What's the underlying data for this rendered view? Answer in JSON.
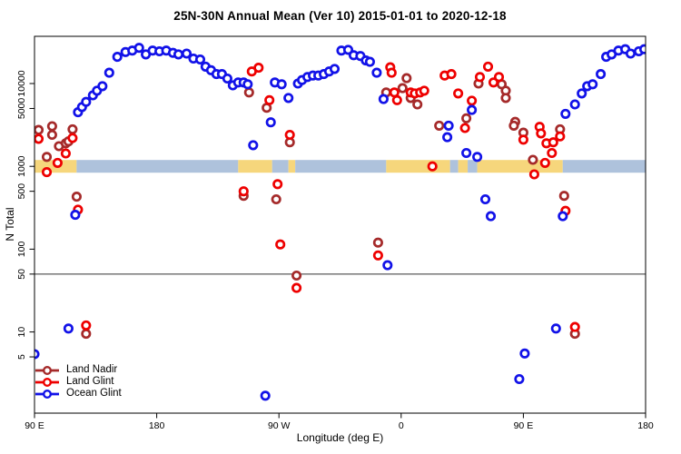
{
  "title": "25N-30N Annual Mean (Ver 10)   2015-01-01 to 2020-12-18",
  "chart_data": {
    "type": "scatter",
    "title": "25N-30N Annual Mean (Ver 10)   2015-01-01 to 2020-12-18",
    "xlabel": "Longitude (deg E)",
    "ylabel": "N Total",
    "x_axis": {
      "range_deg_continuous": [
        90,
        540
      ],
      "note": "longitude axis wraps eastward: 90E to 180 to 90W to 0 to 90E to 180",
      "ticks": [
        {
          "pos": 90,
          "label": "90 E"
        },
        {
          "pos": 180,
          "label": "180"
        },
        {
          "pos": 270,
          "label": "90 W"
        },
        {
          "pos": 360,
          "label": "0"
        },
        {
          "pos": 450,
          "label": "90 E"
        },
        {
          "pos": 540,
          "label": "180"
        }
      ]
    },
    "y_axis": {
      "scale": "log10",
      "range": [
        1,
        37000
      ],
      "ticks": [
        10000,
        5000,
        1000,
        500,
        100,
        50,
        10,
        5
      ]
    },
    "reference_line_value": 50,
    "grid": "off",
    "legend_position": "bottom-left-inside",
    "map_band": {
      "description": "land/ocean strip of the 25N-30N latitude band drawn at N=1000",
      "center_value": 1000,
      "land_color": "#F6D67C",
      "ocean_color": "#AEC2DC",
      "segments": [
        {
          "type": "land",
          "from": 90,
          "to": 121
        },
        {
          "type": "ocean",
          "from": 121,
          "to": 240
        },
        {
          "type": "land",
          "from": 240,
          "to": 265
        },
        {
          "type": "ocean",
          "from": 265,
          "to": 277
        },
        {
          "type": "land",
          "from": 277,
          "to": 282
        },
        {
          "type": "ocean",
          "from": 282,
          "to": 349
        },
        {
          "type": "land",
          "from": 349,
          "to": 396
        },
        {
          "type": "ocean",
          "from": 396,
          "to": 402
        },
        {
          "type": "land",
          "from": 402,
          "to": 409
        },
        {
          "type": "ocean",
          "from": 409,
          "to": 416
        },
        {
          "type": "land",
          "from": 416,
          "to": 479
        },
        {
          "type": "ocean",
          "from": 479,
          "to": 540
        }
      ]
    },
    "series": [
      {
        "id": "land-nadir",
        "label": "Land Nadir",
        "color": "#A52A2A",
        "points": [
          [
            93,
            2750
          ],
          [
            103,
            3050
          ],
          [
            103,
            2400
          ],
          [
            118,
            2800
          ],
          [
            108,
            1750
          ],
          [
            113,
            1900
          ],
          [
            115,
            2000
          ],
          [
            99,
            1300
          ],
          [
            121,
            430
          ],
          [
            248,
            7800
          ],
          [
            261,
            5100
          ],
          [
            278,
            1950
          ],
          [
            268,
            400
          ],
          [
            244,
            440
          ],
          [
            283,
            48
          ],
          [
            364,
            11600
          ],
          [
            349,
            7800
          ],
          [
            361,
            8800
          ],
          [
            367,
            6700
          ],
          [
            372,
            5600
          ],
          [
            388,
            3100
          ],
          [
            343,
            120
          ],
          [
            408,
            3800
          ],
          [
            417,
            10000
          ],
          [
            434,
            9800
          ],
          [
            437,
            8200
          ],
          [
            437,
            6700
          ],
          [
            444,
            3450
          ],
          [
            443,
            3100
          ],
          [
            450,
            2550
          ],
          [
            457,
            1200
          ],
          [
            477,
            2800
          ],
          [
            480,
            440
          ],
          [
            128,
            9.5
          ],
          [
            488,
            9.5
          ]
        ]
      },
      {
        "id": "land-glint",
        "label": "Land Glint",
        "color": "#EE0000",
        "points": [
          [
            93,
            2150
          ],
          [
            118,
            2200
          ],
          [
            113,
            1430
          ],
          [
            107,
            1100
          ],
          [
            99,
            850
          ],
          [
            122,
            300
          ],
          [
            250,
            14000
          ],
          [
            255,
            15500
          ],
          [
            263,
            6300
          ],
          [
            278,
            2400
          ],
          [
            269,
            610
          ],
          [
            244,
            500
          ],
          [
            271,
            114
          ],
          [
            283,
            34
          ],
          [
            352,
            15700
          ],
          [
            353,
            13500
          ],
          [
            355,
            7800
          ],
          [
            357,
            6300
          ],
          [
            367,
            7800
          ],
          [
            370,
            7600
          ],
          [
            374,
            7800
          ],
          [
            377,
            8200
          ],
          [
            343,
            84
          ],
          [
            392,
            12500
          ],
          [
            397,
            13000
          ],
          [
            402,
            7600
          ],
          [
            412,
            6200
          ],
          [
            407,
            2900
          ],
          [
            383,
            1000
          ],
          [
            424,
            16000
          ],
          [
            418,
            12000
          ],
          [
            428,
            10300
          ],
          [
            432,
            12000
          ],
          [
            450,
            2100
          ],
          [
            462,
            3000
          ],
          [
            463,
            2500
          ],
          [
            467,
            1900
          ],
          [
            472,
            1950
          ],
          [
            477,
            2300
          ],
          [
            471,
            1450
          ],
          [
            466,
            1100
          ],
          [
            458,
            800
          ],
          [
            481,
            290
          ],
          [
            128,
            12
          ],
          [
            488,
            11.5
          ]
        ]
      },
      {
        "id": "ocean-glint",
        "label": "Ocean Glint",
        "color": "#1212E8",
        "points": [
          [
            120,
            260
          ],
          [
            122,
            4500
          ],
          [
            125,
            5200
          ],
          [
            128,
            6000
          ],
          [
            133,
            7200
          ],
          [
            136,
            8200
          ],
          [
            140,
            9300
          ],
          [
            145,
            13500
          ],
          [
            151,
            21000
          ],
          [
            157,
            24000
          ],
          [
            162,
            25000
          ],
          [
            167,
            27000
          ],
          [
            172,
            22500
          ],
          [
            177,
            25000
          ],
          [
            182,
            24500
          ],
          [
            187,
            25000
          ],
          [
            192,
            23500
          ],
          [
            196,
            22500
          ],
          [
            202,
            23000
          ],
          [
            207,
            20000
          ],
          [
            212,
            19500
          ],
          [
            216,
            16000
          ],
          [
            220,
            14500
          ],
          [
            224,
            13000
          ],
          [
            228,
            13000
          ],
          [
            232,
            11500
          ],
          [
            236,
            9500
          ],
          [
            240,
            10300
          ],
          [
            244,
            10300
          ],
          [
            247,
            9800
          ],
          [
            251,
            1800
          ],
          [
            264,
            3400
          ],
          [
            267,
            10300
          ],
          [
            272,
            9800
          ],
          [
            277,
            6700
          ],
          [
            284,
            10000
          ],
          [
            287,
            11000
          ],
          [
            291,
            12000
          ],
          [
            295,
            12500
          ],
          [
            299,
            12500
          ],
          [
            303,
            13000
          ],
          [
            307,
            14000
          ],
          [
            311,
            15000
          ],
          [
            316,
            25000
          ],
          [
            321,
            25500
          ],
          [
            325,
            22000
          ],
          [
            330,
            21500
          ],
          [
            334,
            19000
          ],
          [
            337,
            18300
          ],
          [
            342,
            13500
          ],
          [
            347,
            6500
          ],
          [
            350,
            64
          ],
          [
            394,
            2250
          ],
          [
            395,
            3100
          ],
          [
            412,
            4800
          ],
          [
            408,
            1450
          ],
          [
            416,
            1300
          ],
          [
            422,
            400
          ],
          [
            426,
            250
          ],
          [
            479,
            250
          ],
          [
            481,
            4300
          ],
          [
            488,
            5600
          ],
          [
            493,
            7600
          ],
          [
            497,
            9300
          ],
          [
            501,
            9800
          ],
          [
            507,
            13000
          ],
          [
            511,
            21000
          ],
          [
            515,
            22500
          ],
          [
            520,
            25000
          ],
          [
            525,
            26000
          ],
          [
            529,
            23000
          ],
          [
            535,
            24500
          ],
          [
            539,
            26000
          ],
          [
            90,
            5.4
          ],
          [
            115,
            11
          ],
          [
            260,
            1.7
          ],
          [
            451,
            5.5
          ],
          [
            447,
            2.7
          ],
          [
            474,
            11
          ]
        ]
      }
    ]
  }
}
